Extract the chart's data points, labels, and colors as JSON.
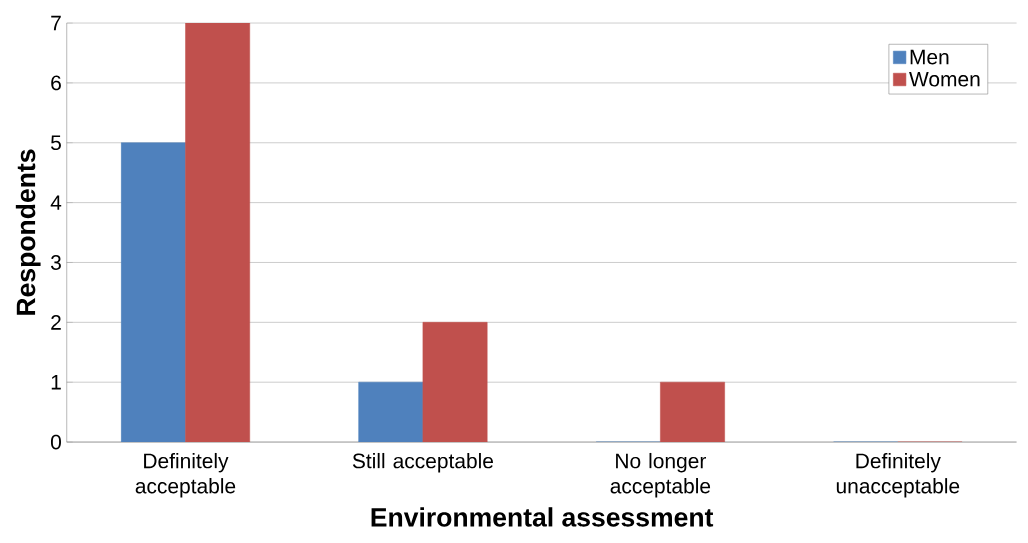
{
  "chart_data": {
    "type": "bar",
    "categories": [
      "Definitely acceptable",
      "Still acceptable",
      "No longer acceptable",
      "Definitely unacceptable"
    ],
    "series": [
      {
        "name": "Men",
        "color": "#4f81bd",
        "values": [
          5,
          1,
          0,
          0
        ]
      },
      {
        "name": "Women",
        "color": "#c0504d",
        "values": [
          7,
          2,
          1,
          0
        ]
      }
    ],
    "xlabel": "Environmental assessment",
    "ylabel": "Respondents",
    "ylim": [
      0,
      7
    ],
    "yticks": [
      0,
      1,
      2,
      3,
      4,
      5,
      6,
      7
    ],
    "grid": "y",
    "legend": "top right"
  }
}
